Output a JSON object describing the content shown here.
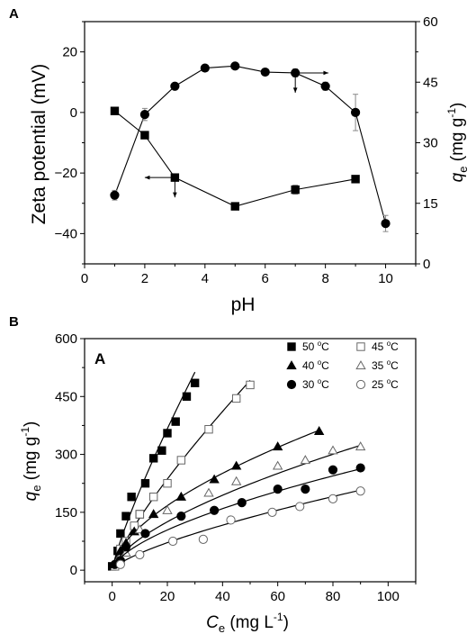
{
  "chart_data": [
    {
      "panel": "A",
      "type": "line",
      "xlabel": "pH",
      "ylabel_left": "Zeta potential (mV)",
      "ylabel_right": "q_e (mg g^-1)",
      "ylabel_right_parts": {
        "main": "q",
        "sub": "e",
        "unit": " (mg g",
        "sup": "-1",
        "close": ")"
      },
      "xlim": [
        0,
        11
      ],
      "ylim_left": [
        -50,
        30
      ],
      "ylim_right": [
        0,
        60
      ],
      "xticks": [
        "0",
        "2",
        "4",
        "6",
        "8",
        "10"
      ],
      "yticks_left": [
        "-40",
        "-20",
        "0",
        "20"
      ],
      "yticks_right": [
        "0",
        "15",
        "30",
        "45",
        "60"
      ],
      "series": [
        {
          "axis": "left",
          "marker": "square",
          "x": [
            1,
            2,
            3,
            5,
            7,
            9
          ],
          "y": [
            0.5,
            -7.5,
            -21.5,
            -31,
            -25.5,
            -22
          ],
          "err": [
            0,
            0,
            0,
            0,
            1.5,
            0
          ]
        },
        {
          "axis": "right",
          "marker": "circle",
          "x": [
            1,
            2,
            3,
            4,
            5,
            6,
            7,
            8,
            9,
            10
          ],
          "y": [
            17,
            37,
            44,
            48.5,
            49,
            47.5,
            47.3,
            44,
            37.5,
            10
          ],
          "err": [
            1.2,
            1.5,
            0,
            0,
            0,
            0,
            1,
            1,
            4.5,
            2
          ]
        }
      ],
      "annotations": [
        "arrow from right-axis curve at pH 7 pointing right",
        "arrow from left-axis curve at pH 3 pointing left"
      ]
    },
    {
      "panel": "B",
      "type": "scatter",
      "inner_label": "A",
      "xlabel": "C_e (mg L^-1)",
      "xlabel_parts": {
        "main": "C",
        "sub": "e",
        "unit": " (mg L",
        "sup": "-1",
        "close": ")"
      },
      "ylabel": "q_e (mg g^-1)",
      "ylabel_parts": {
        "main": "q",
        "sub": "e",
        "unit": " (mg g",
        "sup": "-1",
        "close": ")"
      },
      "xlim": [
        -10,
        110
      ],
      "ylim": [
        -30,
        600
      ],
      "xticks": [
        "0",
        "20",
        "40",
        "60",
        "80",
        "100"
      ],
      "yticks": [
        "0",
        "150",
        "300",
        "450",
        "600"
      ],
      "legend_placement": "top-right",
      "series": [
        {
          "name": "50 °C",
          "label_num": "50 ",
          "label_deg": "o",
          "label_unit": "C",
          "marker": "square-filled",
          "x": [
            0,
            2,
            3,
            5,
            7,
            10,
            12,
            15,
            18,
            20,
            23,
            27,
            30
          ],
          "y": [
            10,
            50,
            95,
            140,
            190,
            145,
            225,
            290,
            310,
            355,
            385,
            450,
            485
          ],
          "fit_k": 30.5,
          "fit_n": 0.83
        },
        {
          "name": "45 °C",
          "label_num": "45 ",
          "label_deg": "o",
          "label_unit": "C",
          "marker": "square-open",
          "x": [
            1,
            3,
            5,
            8,
            10,
            15,
            20,
            25,
            35,
            45,
            50
          ],
          "y": [
            10,
            55,
            75,
            115,
            145,
            190,
            225,
            285,
            365,
            445,
            480
          ],
          "fit_k": 21.5,
          "fit_n": 0.8
        },
        {
          "name": "40 °C",
          "label_num": "40 ",
          "label_deg": "o",
          "label_unit": "C",
          "marker": "triangle-filled",
          "x": [
            1,
            3,
            5,
            8,
            15,
            25,
            37,
            45,
            60,
            75
          ],
          "y": [
            15,
            50,
            70,
            100,
            145,
            190,
            235,
            270,
            320,
            360
          ],
          "fit_k": 29,
          "fit_n": 0.585
        },
        {
          "name": "35 °C",
          "label_num": "35 ",
          "label_deg": "o",
          "label_unit": "C",
          "marker": "triangle-open",
          "x": [
            2,
            5,
            10,
            20,
            35,
            45,
            60,
            70,
            80,
            90
          ],
          "y": [
            25,
            45,
            105,
            155,
            200,
            230,
            270,
            285,
            310,
            320
          ],
          "fit_k": 19,
          "fit_n": 0.63
        },
        {
          "name": "30 °C",
          "label_num": "30 ",
          "label_deg": "o",
          "label_unit": "C",
          "marker": "circle-filled",
          "x": [
            1,
            3,
            5,
            12,
            25,
            37,
            47,
            60,
            70,
            80,
            90
          ],
          "y": [
            15,
            25,
            60,
            95,
            140,
            155,
            175,
            210,
            210,
            260,
            265
          ],
          "fit_k": 16.5,
          "fit_n": 0.615
        },
        {
          "name": "25 °C",
          "label_num": "25 ",
          "label_deg": "o",
          "label_unit": "C",
          "marker": "circle-open",
          "x": [
            3,
            10,
            22,
            33,
            43,
            58,
            68,
            80,
            90
          ],
          "y": [
            15,
            40,
            75,
            80,
            130,
            150,
            165,
            185,
            205
          ],
          "fit_k": 8.5,
          "fit_n": 0.71
        }
      ]
    }
  ]
}
